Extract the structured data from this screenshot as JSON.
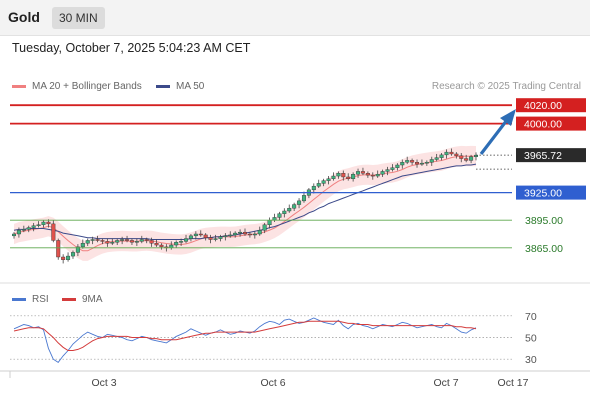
{
  "header": {
    "instrument": "Gold",
    "timeframe": "30 MIN",
    "datetime": "Tuesday, October 7, 2025 5:04:23 AM CET"
  },
  "legend": {
    "ma20_label": "MA 20 + Bollinger Bands",
    "ma50_label": "MA 50",
    "research": "Research © 2025 Trading Central"
  },
  "rsi_legend": {
    "rsi_label": "RSI",
    "ma_label": "9MA"
  },
  "colors": {
    "resistance": "#d42020",
    "pivot": "#2f5fd0",
    "support": "#5ca84c",
    "up_candle": "#3fb27f",
    "down_candle": "#e0524d",
    "ma20": "#f08080",
    "ma50": "#3c4a8a",
    "arrow": "#2d6db5",
    "rsi": "#4a78d0",
    "rsi_ma": "#d43c3c",
    "last_price": "#2a2a2a"
  },
  "chart_data": {
    "type": "candlestick",
    "ylim": [
      3830,
      4030
    ],
    "x_ticks": [
      "Oct 3",
      "Oct 6",
      "Oct 7",
      "Oct 17"
    ],
    "levels": [
      {
        "label": "4020.00",
        "value": 4020,
        "kind": "resistance"
      },
      {
        "label": "4000.00",
        "value": 4000,
        "kind": "resistance"
      },
      {
        "label": "3925.00",
        "value": 3925,
        "kind": "pivot"
      },
      {
        "label": "3895.00",
        "value": 3895,
        "kind": "support"
      },
      {
        "label": "3865.00",
        "value": 3865,
        "kind": "support"
      }
    ],
    "last_price": {
      "label": "3965.72",
      "value": 3965.72
    },
    "close_series": [
      3880,
      3884,
      3885,
      3887,
      3889,
      3890,
      3893,
      3891,
      3873,
      3855,
      3852,
      3856,
      3860,
      3866,
      3870,
      3873,
      3874,
      3873,
      3872,
      3870,
      3871,
      3873,
      3874,
      3873,
      3871,
      3872,
      3874,
      3873,
      3870,
      3868,
      3866,
      3865,
      3868,
      3871,
      3872,
      3875,
      3878,
      3880,
      3879,
      3876,
      3874,
      3875,
      3877,
      3878,
      3879,
      3881,
      3882,
      3880,
      3879,
      3880,
      3884,
      3890,
      3895,
      3898,
      3902,
      3905,
      3908,
      3912,
      3916,
      3922,
      3928,
      3932,
      3935,
      3938,
      3940,
      3943,
      3946,
      3942,
      3940,
      3945,
      3948,
      3946,
      3944,
      3943,
      3945,
      3948,
      3950,
      3952,
      3955,
      3958,
      3960,
      3958,
      3956,
      3957,
      3958,
      3961,
      3963,
      3966,
      3969,
      3967,
      3965,
      3962,
      3960,
      3964,
      3965.72
    ],
    "ma50": [
      3884,
      3885,
      3885,
      3886,
      3886,
      3886,
      3886,
      3885,
      3884,
      3883,
      3881,
      3880,
      3879,
      3878,
      3877,
      3876,
      3876,
      3875,
      3875,
      3875,
      3875,
      3875,
      3875,
      3875,
      3875,
      3875,
      3875,
      3875,
      3874,
      3874,
      3874,
      3874,
      3874,
      3874,
      3874,
      3874,
      3875,
      3875,
      3875,
      3876,
      3876,
      3877,
      3877,
      3878,
      3878,
      3879,
      3880,
      3881,
      3882,
      3883,
      3884,
      3885,
      3887,
      3888,
      3890,
      3892,
      3894,
      3896,
      3898,
      3900,
      3903,
      3905,
      3908,
      3910,
      3913,
      3915,
      3917,
      3919,
      3921,
      3923,
      3925,
      3927,
      3929,
      3931,
      3933,
      3935,
      3937,
      3939,
      3941,
      3943,
      3944,
      3945,
      3946,
      3947,
      3948,
      3949,
      3950,
      3951,
      3952,
      3953,
      3954,
      3954,
      3955,
      3955,
      3956
    ],
    "rsi": {
      "ylim": [
        20,
        80
      ],
      "ticks": [
        70,
        50,
        30
      ],
      "rsi_values": [
        58,
        60,
        62,
        61,
        59,
        60,
        57,
        40,
        30,
        27,
        33,
        38,
        44,
        48,
        52,
        55,
        53,
        51,
        50,
        53,
        52,
        51,
        50,
        48,
        47,
        49,
        51,
        50,
        48,
        47,
        46,
        45,
        48,
        51,
        53,
        55,
        58,
        56,
        54,
        52,
        54,
        55,
        57,
        55,
        53,
        54,
        56,
        55,
        54,
        56,
        60,
        63,
        65,
        64,
        62,
        66,
        67,
        65,
        63,
        64,
        66,
        68,
        66,
        64,
        63,
        62,
        66,
        61,
        58,
        62,
        63,
        61,
        60,
        58,
        60,
        62,
        61,
        60,
        62,
        64,
        63,
        61,
        59,
        60,
        61,
        62,
        60,
        59,
        63,
        61,
        58,
        55,
        54,
        57,
        59
      ],
      "ma_values": [
        56,
        57,
        58,
        59,
        59,
        59,
        58,
        54,
        50,
        45,
        41,
        38,
        38,
        39,
        41,
        44,
        47,
        49,
        50,
        51,
        51,
        51,
        51,
        51,
        50,
        50,
        50,
        50,
        49,
        49,
        48,
        48,
        48,
        48,
        49,
        50,
        51,
        52,
        53,
        54,
        54,
        55,
        55,
        55,
        55,
        55,
        55,
        55,
        55,
        55,
        56,
        57,
        58,
        59,
        60,
        61,
        62,
        63,
        64,
        64,
        65,
        65,
        65,
        65,
        65,
        65,
        65,
        64,
        63,
        63,
        62,
        62,
        62,
        61,
        61,
        61,
        61,
        61,
        61,
        61,
        61,
        61,
        61,
        61,
        61,
        61,
        61,
        61,
        61,
        61,
        60,
        60,
        59,
        59,
        58
      ]
    }
  }
}
